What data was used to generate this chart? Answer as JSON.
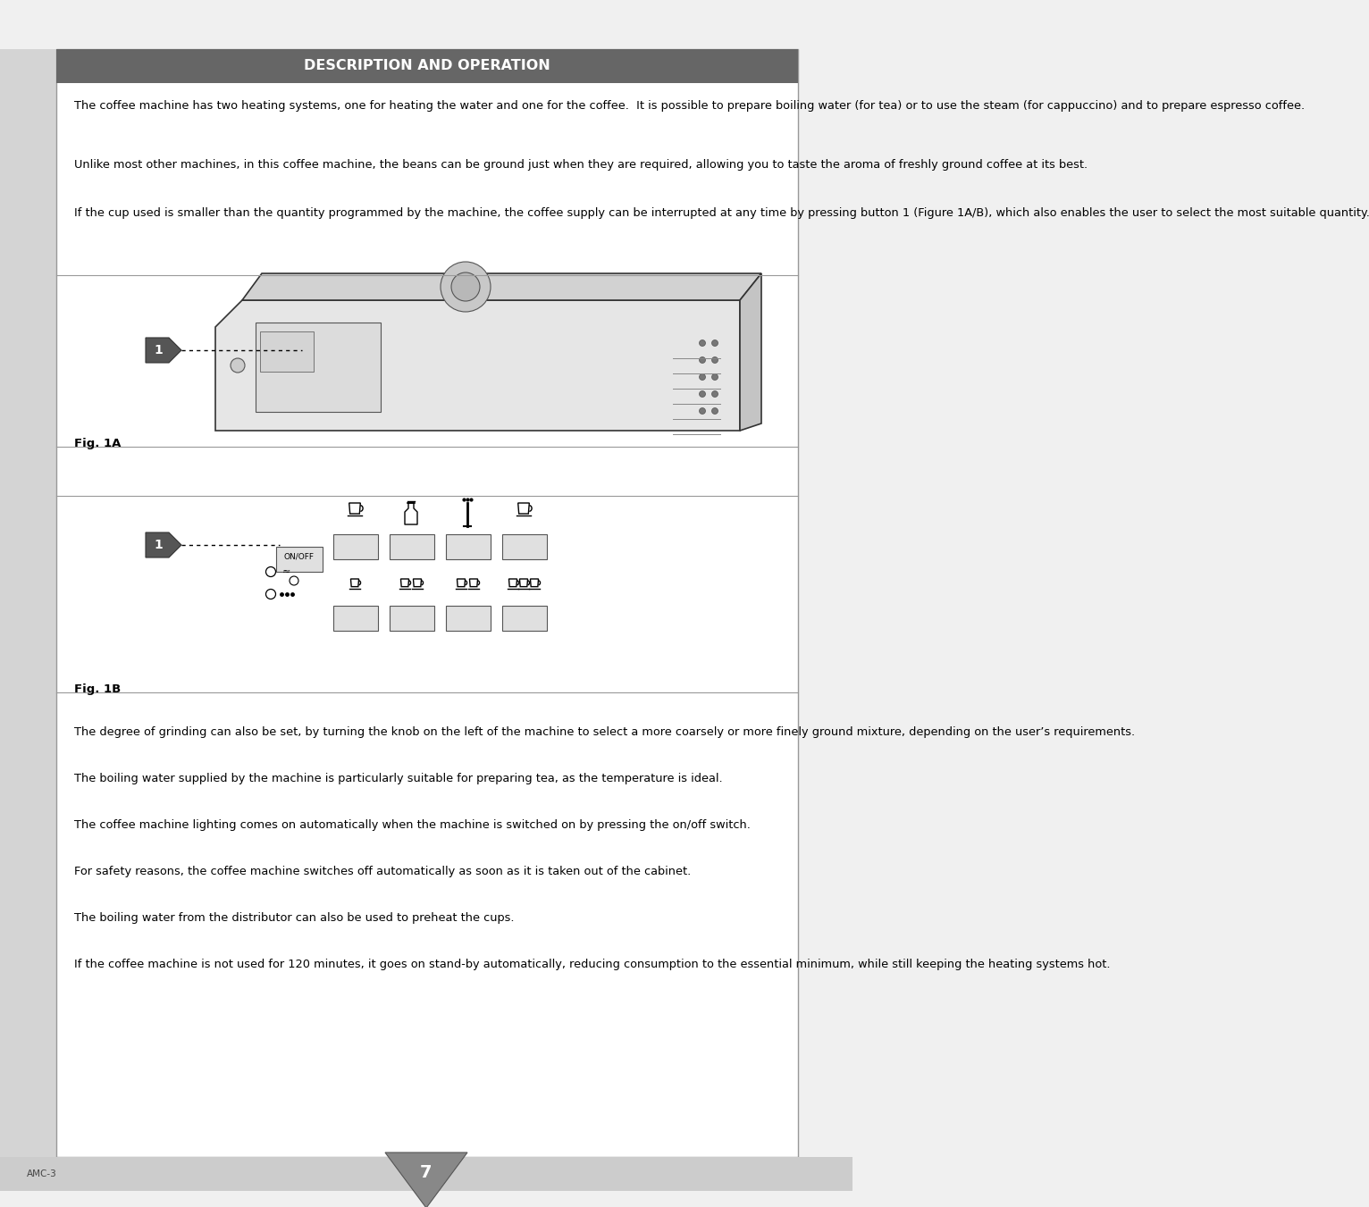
{
  "title": "DESCRIPTION AND OPERATION",
  "title_bg": "#666666",
  "title_color": "#ffffff",
  "page_bg": "#ffffff",
  "outer_bg": "#f0f0f0",
  "border_color": "#999999",
  "text_color": "#000000",
  "para1": "The coffee machine has two heating systems, one for heating the water and one for the coffee.  It is possible to prepare boiling water (for tea) or to use the steam (for cappuccino) and to prepare espresso coffee.",
  "para2": "Unlike most other machines, in this coffee machine, the beans can be ground just when they are required, allowing you to taste the aroma of freshly ground coffee at its best.",
  "para3": "If the cup used is smaller than the quantity programmed by the machine, the coffee supply can be interrupted at any time by pressing button 1 (Figure 1A/B), which also enables the user to select the most suitable quantity.",
  "fig1a_label": "Fig. 1A",
  "fig1b_label": "Fig. 1B",
  "para4": "The degree of grinding can also be set, by turning the knob on the left of the machine to select a more coarsely or more finely ground mixture, depending on the user’s requirements.",
  "para5": "The boiling water supplied by the machine is particularly suitable for preparing tea, as the temperature is ideal.",
  "para6": "The coffee machine lighting comes on automatically when the machine is switched on by pressing the on/off switch.",
  "para7": "For safety reasons, the coffee machine switches off automatically as soon as it is taken out of the cabinet.",
  "para8": "The boiling water from the distributor can also be used to preheat the cups.",
  "para9": "If the coffee machine is not used for 120 minutes, it goes on stand-by automatically, reducing consumption to the essential minimum, while still keeping the heating systems hot.",
  "footer_text": "AMC-3",
  "page_number": "7",
  "footer_bg": "#cccccc",
  "left_strip_bg": "#d4d4d4"
}
